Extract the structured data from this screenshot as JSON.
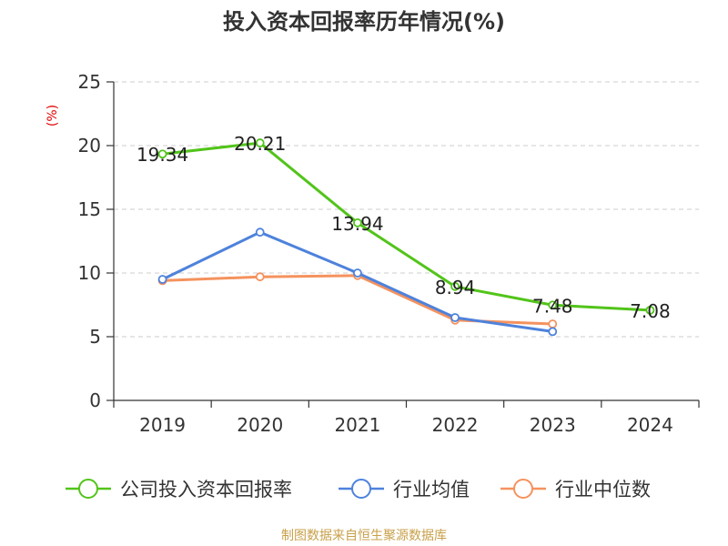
{
  "chart_data": {
    "type": "line",
    "title": "投入资本回报率历年情况(%)",
    "ylabel": "(%)",
    "xlabel": "",
    "categories": [
      "2019",
      "2020",
      "2021",
      "2022",
      "2023",
      "2024"
    ],
    "ylim": [
      0,
      25
    ],
    "yticks": [
      0,
      5,
      10,
      15,
      20,
      25
    ],
    "grid": true,
    "legend_position": "bottom",
    "series": [
      {
        "name": "公司投入资本回报率",
        "color": "#52c41a",
        "values": [
          19.34,
          20.21,
          13.94,
          8.94,
          7.48,
          7.08
        ],
        "data_labels": [
          "19.34",
          "20.21",
          "13.94",
          "8.94",
          "7.48",
          "7.08"
        ]
      },
      {
        "name": "行业均值",
        "color": "#4e82dc",
        "values": [
          9.5,
          13.2,
          10.0,
          6.5,
          5.4,
          null
        ]
      },
      {
        "name": "行业中位数",
        "color": "#f5925e",
        "values": [
          9.4,
          9.7,
          9.8,
          6.3,
          6.0,
          null
        ]
      }
    ]
  },
  "source": {
    "text": "制图数据来自恒生聚源数据库",
    "color": "#c8a04a"
  },
  "colors": {
    "axis": "#333333",
    "grid": "#cccccc",
    "ylabel": "#e00000"
  }
}
